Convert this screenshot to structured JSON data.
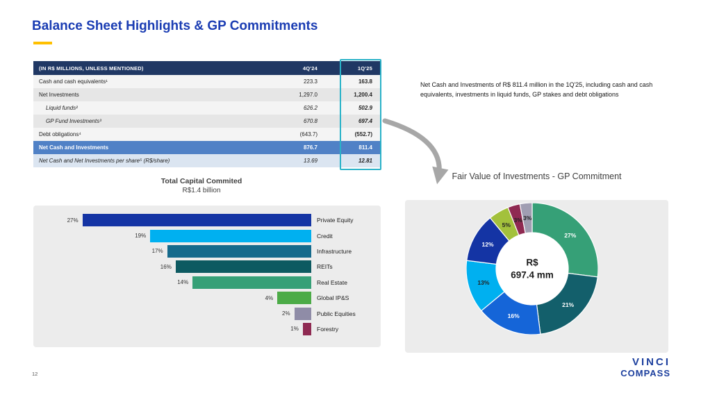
{
  "slide": {
    "title": "Balance Sheet Highlights & GP Commitments",
    "page_number": "12",
    "accent_color": "#ffc000",
    "title_color": "#1b3db3",
    "logo_line1": "VINCI",
    "logo_line2": "COMPASS"
  },
  "table": {
    "header": {
      "label": "(IN R$ MILLIONS, UNLESS MENTIONED)",
      "col1": "4Q'24",
      "col2": "1Q'25"
    },
    "highlight_color": "#29b2c8",
    "header_bg": "#203864",
    "total_row_bg": "#5081c6",
    "rows": [
      {
        "label": "Cash and cash equivalents¹",
        "q4": "223.3",
        "q1": "163.8",
        "style": "normal",
        "shade": "light"
      },
      {
        "label": "Net Investments",
        "q4": "1,297.0",
        "q1": "1,200.4",
        "style": "normal",
        "shade": "dark"
      },
      {
        "label": "Liquid funds²",
        "q4": "626.2",
        "q1": "502.9",
        "style": "italic-indent",
        "shade": "light"
      },
      {
        "label": "GP Fund Investments³",
        "q4": "670.8",
        "q1": "697.4",
        "style": "italic-indent",
        "shade": "dark"
      },
      {
        "label": "Debt obligations⁴",
        "q4": "(643.7)",
        "q1": "(552.7)",
        "style": "normal",
        "shade": "light"
      },
      {
        "label": "Net Cash and Investments",
        "q4": "876.7",
        "q1": "811.4",
        "style": "total",
        "shade": "blue"
      },
      {
        "label": "Net Cash and Net Investments per share⁵ (R$/share)",
        "q4": "13.69",
        "q1": "12.81",
        "style": "italic",
        "shade": "lightblue"
      }
    ]
  },
  "callout": {
    "text": "Net Cash and Investments of R$ 811.4 million in the 1Q'25, including cash and cash equivalents, investments in liquid funds, GP stakes and debt obligations"
  },
  "chart_data": [
    {
      "type": "bar",
      "orientation": "horizontal",
      "title": "Total Capital Commited",
      "subtitle": "R$1.4 billion",
      "categories": [
        "Private Equity",
        "Credit",
        "Infrastructure",
        "REITs",
        "Real Estate",
        "Global IP&S",
        "Public Equities",
        "Forestry"
      ],
      "values": [
        27,
        19,
        17,
        16,
        14,
        4,
        2,
        1
      ],
      "unit": "%",
      "xlim": [
        0,
        27
      ],
      "grid": false,
      "colors": [
        "#1434a4",
        "#00b0f0",
        "#156a8c",
        "#0d5a61",
        "#36a077",
        "#4cab47",
        "#8f8ca7",
        "#8f2a52"
      ]
    },
    {
      "type": "pie",
      "subtype": "donut",
      "title": "Fair Value of Investments - GP Commitment",
      "center_label_line1": "R$",
      "center_label_line2": "697.4 mm",
      "labels": [
        "27%",
        "21%",
        "16%",
        "13%",
        "12%",
        "5%",
        "3%",
        "3%"
      ],
      "values": [
        27,
        21,
        16,
        13,
        12,
        5,
        3,
        3
      ],
      "colors": [
        "#36a077",
        "#135f6b",
        "#1565d8",
        "#00b0f0",
        "#1434a4",
        "#a3c13c",
        "#8f2a52",
        "#a09eb2"
      ],
      "legend": "none"
    }
  ]
}
